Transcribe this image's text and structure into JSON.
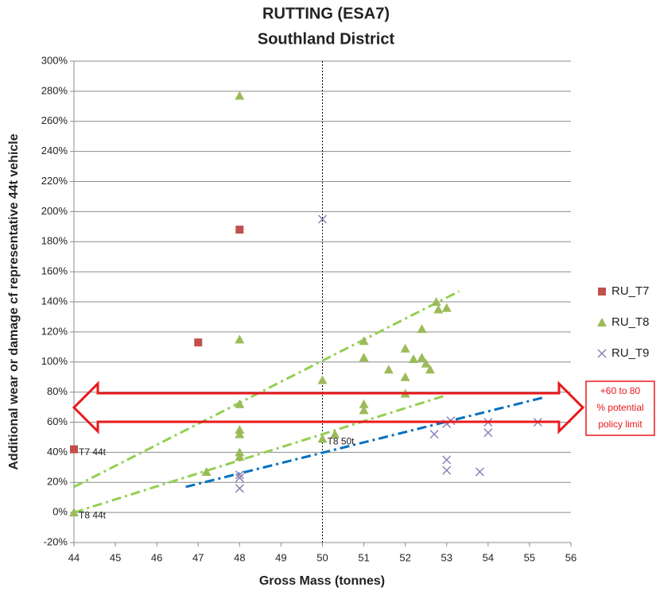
{
  "chart_data": {
    "type": "scatter",
    "title": "RUTTING (ESA7)",
    "subtitle": "Southland District",
    "x_label": "Gross Mass (tonnes)",
    "y_label": "Additional wear  or damage cf representative 44t vehicle",
    "xlim": [
      44,
      56
    ],
    "ylim": [
      -20,
      300
    ],
    "xticks": [
      44,
      45,
      46,
      47,
      48,
      49,
      50,
      51,
      52,
      53,
      54,
      55,
      56
    ],
    "yticks": [
      {
        "value": -20,
        "label": "-20%"
      },
      {
        "value": 0,
        "label": "0%"
      },
      {
        "value": 20,
        "label": "20%"
      },
      {
        "value": 40,
        "label": "40%"
      },
      {
        "value": 60,
        "label": "60%"
      },
      {
        "value": 80,
        "label": "80%"
      },
      {
        "value": 100,
        "label": "100%"
      },
      {
        "value": 120,
        "label": "120%"
      },
      {
        "value": 140,
        "label": "140%"
      },
      {
        "value": 160,
        "label": "160%"
      },
      {
        "value": 180,
        "label": "180%"
      },
      {
        "value": 200,
        "label": "200%"
      },
      {
        "value": 220,
        "label": "220%"
      },
      {
        "value": 240,
        "label": "240%"
      },
      {
        "value": 260,
        "label": "260%"
      },
      {
        "value": 280,
        "label": "280%"
      },
      {
        "value": 300,
        "label": "300%"
      }
    ],
    "grid": true,
    "legend": "right",
    "series": [
      {
        "name": "RU_T7",
        "color": "#c0504d",
        "marker": "square",
        "x": [
          44,
          47,
          48
        ],
        "values": [
          42,
          113,
          188
        ]
      },
      {
        "name": "RU_T8",
        "color": "#9bbb59",
        "marker": "triangle",
        "x": [
          44,
          47.2,
          48,
          48,
          48,
          48,
          48,
          48,
          48,
          50,
          50,
          50.3,
          51,
          51,
          51,
          51,
          51.6,
          52,
          52,
          52,
          52.2,
          52.4,
          52.4,
          52.5,
          52.6,
          52.75,
          52.8,
          53
        ],
        "values": [
          0,
          27,
          277,
          115,
          72,
          55,
          52,
          40,
          37,
          88,
          49,
          52,
          114,
          103,
          72,
          68,
          95,
          109,
          90,
          79,
          102,
          122,
          103,
          99,
          95,
          140,
          135,
          136
        ]
      },
      {
        "name": "RU_T9",
        "color": "#8f7fb3",
        "marker": "x",
        "x": [
          48,
          48,
          48,
          50,
          52.7,
          53,
          53,
          53,
          53.1,
          53.8,
          54,
          54,
          55.2
        ],
        "values": [
          25,
          23,
          16,
          195,
          52,
          35,
          28,
          59,
          61,
          27,
          60,
          53,
          60
        ]
      }
    ],
    "trendlines": [
      {
        "color": "#92d050",
        "x": [
          44,
          53.3
        ],
        "values": [
          17,
          147
        ]
      },
      {
        "color": "#92d050",
        "x": [
          44,
          53
        ],
        "values": [
          0,
          78
        ]
      },
      {
        "color": "#0070c0",
        "x": [
          46.7,
          55.35
        ],
        "values": [
          17,
          76.5
        ]
      }
    ],
    "vline": 50,
    "annotations": [
      {
        "text": "T7 44t",
        "x": 44,
        "y": 42
      },
      {
        "text": "T8 44t",
        "x": 44,
        "y": 0
      },
      {
        "text": "T8 50t",
        "x": 50,
        "y": 49
      }
    ],
    "policy_note": [
      "+60 to 80",
      "% potential",
      "policy limit"
    ]
  }
}
